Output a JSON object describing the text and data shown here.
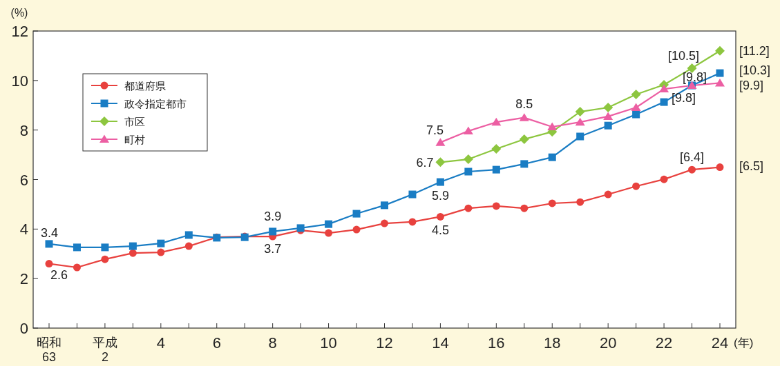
{
  "chart_data": {
    "type": "line",
    "ylabel": "(%)",
    "xlabel": "(年)",
    "categories": [
      "昭和\n63",
      null,
      "平成\n2",
      null,
      "4",
      null,
      "6",
      null,
      "8",
      null,
      "10",
      null,
      "12",
      null,
      "14",
      null,
      "16",
      null,
      "18",
      null,
      "20",
      null,
      "22",
      null,
      "24"
    ],
    "ylim": [
      0,
      12
    ],
    "yticks": [
      0,
      2,
      4,
      6,
      8,
      10,
      12
    ],
    "grid": false,
    "legend": "top left",
    "series": [
      {
        "name": "都道府県",
        "color": "#e8413e",
        "marker": "circle",
        "values": [
          2.6,
          2.45,
          2.78,
          3.03,
          3.06,
          3.31,
          3.67,
          3.7,
          3.7,
          3.95,
          3.84,
          3.98,
          4.23,
          4.29,
          4.5,
          4.84,
          4.93,
          4.84,
          5.04,
          5.09,
          5.4,
          5.73,
          6.01,
          6.4,
          6.5
        ],
        "value_labels": [
          "2.6",
          null,
          null,
          null,
          null,
          null,
          null,
          null,
          "3.7",
          null,
          null,
          null,
          null,
          null,
          "4.5",
          null,
          null,
          null,
          null,
          null,
          null,
          null,
          null,
          "[6.4]",
          "[6.5]"
        ]
      },
      {
        "name": "政令指定都市",
        "color": "#1a7dc4",
        "marker": "square",
        "values": [
          3.4,
          3.26,
          3.26,
          3.31,
          3.42,
          3.76,
          3.65,
          3.67,
          3.9,
          4.04,
          4.2,
          4.62,
          4.96,
          5.4,
          5.9,
          6.32,
          6.4,
          6.63,
          6.9,
          7.74,
          8.18,
          8.63,
          9.13,
          9.8,
          10.3
        ],
        "value_labels": [
          "3.4",
          null,
          null,
          null,
          null,
          null,
          null,
          null,
          "3.9",
          null,
          null,
          null,
          null,
          null,
          "5.9",
          null,
          null,
          null,
          null,
          null,
          null,
          null,
          null,
          "[9.8]",
          "[10.3]"
        ]
      },
      {
        "name": "市区",
        "color": "#8dc63f",
        "marker": "diamond",
        "values": [
          null,
          null,
          null,
          null,
          null,
          null,
          null,
          null,
          null,
          null,
          null,
          null,
          null,
          null,
          6.7,
          6.82,
          7.24,
          7.63,
          7.93,
          8.74,
          8.91,
          9.44,
          9.83,
          10.5,
          11.2
        ],
        "value_labels": [
          null,
          null,
          null,
          null,
          null,
          null,
          null,
          null,
          null,
          null,
          null,
          null,
          null,
          null,
          "6.7",
          null,
          null,
          null,
          null,
          null,
          null,
          null,
          null,
          "[10.5]",
          "[11.2]"
        ]
      },
      {
        "name": "町村",
        "color": "#ec5fa3",
        "marker": "triangle",
        "values": [
          null,
          null,
          null,
          null,
          null,
          null,
          null,
          null,
          null,
          null,
          null,
          null,
          null,
          null,
          7.5,
          7.96,
          8.32,
          8.5,
          8.13,
          8.32,
          8.55,
          8.91,
          9.66,
          9.8,
          9.9
        ],
        "value_labels": [
          null,
          null,
          null,
          null,
          null,
          null,
          null,
          null,
          null,
          null,
          null,
          null,
          null,
          null,
          "7.5",
          null,
          null,
          "8.5",
          null,
          null,
          null,
          null,
          null,
          "[9.8]",
          "[9.9]"
        ]
      }
    ]
  }
}
